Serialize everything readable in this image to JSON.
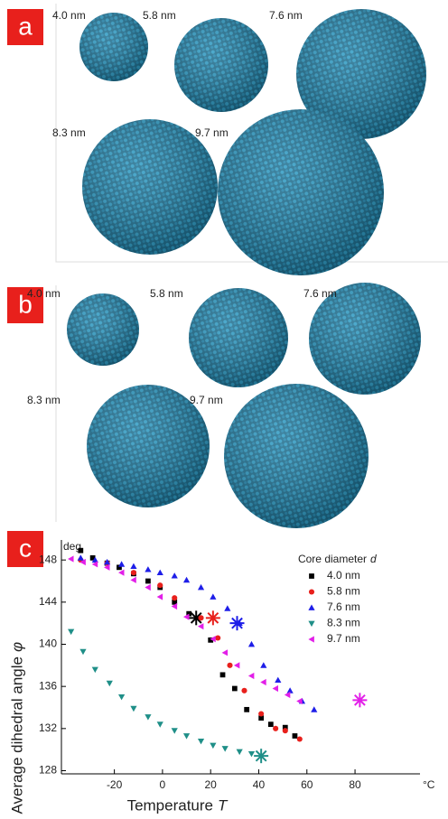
{
  "panel_a": {
    "label": "a",
    "sizes": [
      "4.0 nm",
      "5.8 nm",
      "7.6 nm",
      "8.3 nm",
      "9.7 nm"
    ]
  },
  "panel_b": {
    "label": "b",
    "sizes": [
      "4.0 nm",
      "5.8 nm",
      "7.6 nm",
      "8.3 nm",
      "9.7 nm"
    ]
  },
  "chart_data": {
    "type": "scatter",
    "panel_label": "c",
    "ylabel": "Average dihedral angle",
    "ylabel_symbol": "φ",
    "yunit": "deg",
    "xlabel": "Temperature",
    "xlabel_symbol": "T",
    "xunit": "°C",
    "legend_title": "Core diameter",
    "legend_title_symbol": "d",
    "xlim": [
      -42,
      107
    ],
    "xticks": [
      -20,
      0,
      20,
      40,
      60,
      80
    ],
    "ylim": [
      127.7,
      149.9
    ],
    "yticks": [
      128,
      132,
      136,
      140,
      144,
      148
    ],
    "series": [
      {
        "name": "4.0 nm",
        "color": "#000000",
        "marker": "square",
        "x": [
          -34,
          -29,
          -23,
          -18,
          -12,
          -6,
          -1,
          5,
          11,
          20,
          25,
          30,
          35,
          41,
          45,
          51,
          55
        ],
        "values": [
          148.9,
          148.2,
          147.7,
          147.3,
          146.7,
          146.0,
          145.4,
          144.0,
          142.9,
          140.4,
          137.1,
          135.8,
          133.8,
          133.0,
          132.4,
          132.1,
          131.3
        ],
        "star_x": 14,
        "star_y": 142.5
      },
      {
        "name": "5.8 nm",
        "color": "#e8201c",
        "marker": "circle",
        "x": [
          -34,
          -23,
          -12,
          -1,
          5,
          16,
          23,
          28,
          34,
          41,
          47,
          51,
          57
        ],
        "values": [
          148.0,
          147.7,
          146.8,
          145.6,
          144.4,
          142.5,
          140.6,
          138.0,
          135.6,
          133.4,
          132.0,
          131.8,
          131.0
        ],
        "star_x": 21,
        "star_y": 142.5
      },
      {
        "name": "7.6 nm",
        "color": "#1e1ee8",
        "marker": "triangle-up",
        "x": [
          -34,
          -28,
          -23,
          -17,
          -12,
          -6,
          -1,
          5,
          10,
          16,
          21,
          27,
          32,
          37,
          42,
          48,
          53,
          58,
          63
        ],
        "values": [
          148.2,
          148.0,
          147.8,
          147.6,
          147.4,
          147.1,
          146.8,
          146.5,
          146.1,
          145.4,
          144.5,
          143.4,
          142.0,
          140.0,
          138.0,
          136.6,
          135.6,
          134.6,
          133.8
        ],
        "star_x": 31,
        "star_y": 142.0
      },
      {
        "name": "8.3 nm",
        "color": "#1f8f88",
        "marker": "triangle-down",
        "x": [
          -38,
          -33,
          -28,
          -22,
          -17,
          -12,
          -6,
          -1,
          5,
          10,
          16,
          21,
          26,
          32,
          37
        ],
        "values": [
          141.2,
          139.3,
          137.6,
          136.3,
          135.0,
          133.9,
          133.1,
          132.4,
          131.8,
          131.3,
          130.8,
          130.4,
          130.1,
          129.8,
          129.6
        ],
        "star_x": 41,
        "star_y": 129.4
      },
      {
        "name": "9.7 nm",
        "color": "#e21fe8",
        "marker": "triangle-left",
        "x": [
          -38,
          -33,
          -28,
          -23,
          -17,
          -12,
          -6,
          -1,
          5,
          10,
          16,
          21,
          26,
          31,
          37,
          42,
          47,
          52,
          57
        ],
        "values": [
          148.1,
          147.8,
          147.6,
          147.3,
          146.8,
          146.1,
          145.4,
          144.5,
          143.6,
          142.6,
          141.7,
          140.5,
          139.2,
          138.0,
          137.0,
          136.4,
          135.8,
          135.2,
          134.6
        ],
        "star_x": 82,
        "star_y": 134.7
      }
    ]
  }
}
